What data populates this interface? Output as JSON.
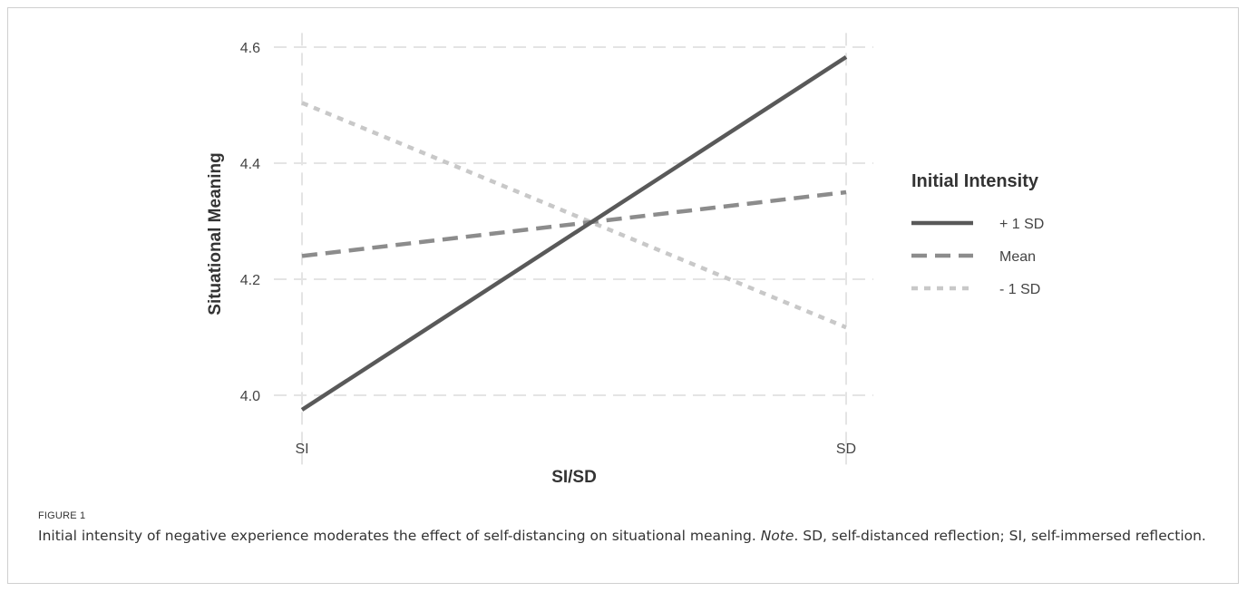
{
  "figure": {
    "label": "FIGURE 1",
    "caption_main": "Initial intensity of negative experience moderates the effect of self-distancing on situational meaning. ",
    "caption_note_label": "Note",
    "caption_note_text": ". SD, self-distanced reflection; SI, self-immersed reflection."
  },
  "chart_data": {
    "type": "line",
    "categories": [
      "SI",
      "SD"
    ],
    "xlabel": "SI/SD",
    "ylabel": "Situational Meaning",
    "ylim": [
      3.93,
      4.615
    ],
    "yticks": [
      4.0,
      4.2,
      4.4,
      4.6
    ],
    "ytick_labels": [
      "4.0",
      "4.2",
      "4.4",
      "4.6"
    ],
    "grid": true,
    "legend": {
      "title": "Initial Intensity",
      "placement": "right"
    },
    "series": [
      {
        "name": "+ 1 SD",
        "values": [
          3.975,
          4.583
        ],
        "color": "#595959",
        "style": "solid"
      },
      {
        "name": "Mean",
        "values": [
          4.24,
          4.35
        ],
        "color": "#8c8c8c",
        "style": "dashed"
      },
      {
        "name": "- 1 SD",
        "values": [
          4.504,
          4.117
        ],
        "color": "#c8c8c8",
        "style": "dotted"
      }
    ]
  }
}
